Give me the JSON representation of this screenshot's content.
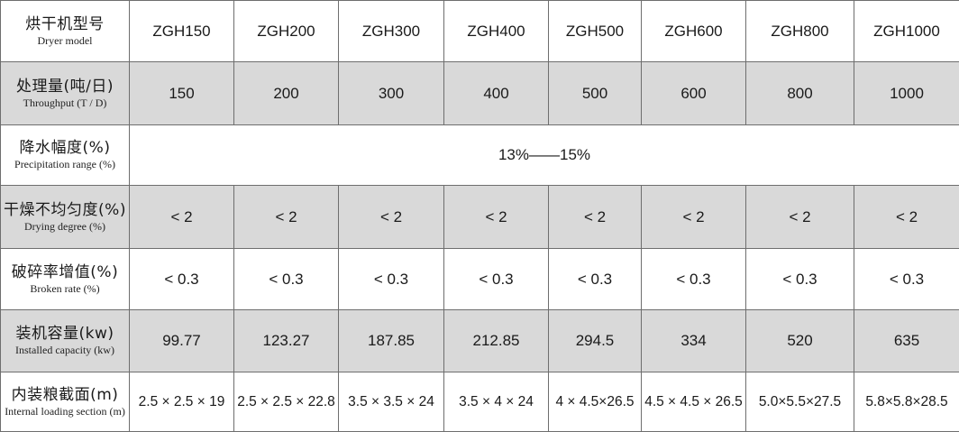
{
  "header": {
    "zh": "烘干机型号",
    "en": "Dryer model",
    "models": [
      "ZGH150",
      "ZGH200",
      "ZGH300",
      "ZGH400",
      "ZGH500",
      "ZGH600",
      "ZGH800",
      "ZGH1000"
    ]
  },
  "rows": [
    {
      "zh": "处理量(吨/日)",
      "en": "Throughput (T / D)",
      "values": [
        "150",
        "200",
        "300",
        "400",
        "500",
        "600",
        "800",
        "1000"
      ]
    },
    {
      "zh": "降水幅度(%)",
      "en": "Precipitation range (%)",
      "merged_value": "13%——15%"
    },
    {
      "zh": "干燥不均匀度(%)",
      "en": "Drying degree (%)",
      "values": [
        "< 2",
        "< 2",
        "< 2",
        "< 2",
        "< 2",
        "< 2",
        "< 2",
        "< 2"
      ]
    },
    {
      "zh": "破碎率增值(%)",
      "en": "Broken rate (%)",
      "values": [
        "< 0.3",
        "< 0.3",
        "< 0.3",
        "< 0.3",
        "< 0.3",
        "< 0.3",
        "< 0.3",
        "< 0.3"
      ]
    },
    {
      "zh": "装机容量(kw)",
      "en": "Installed capacity (kw)",
      "values": [
        "99.77",
        "123.27",
        "187.85",
        "212.85",
        "294.5",
        "334",
        "520",
        "635"
      ]
    },
    {
      "zh": "内装粮截面(m)",
      "en": "Internal loading section (m)",
      "values": [
        "2.5 × 2.5 × 19",
        "2.5 × 2.5 × 22.8",
        "3.5 × 3.5 × 24",
        "3.5 × 4 × 24",
        "4 × 4.5×26.5",
        "4.5 × 4.5 × 26.5",
        "5.0×5.5×27.5",
        "5.8×5.8×28.5"
      ]
    }
  ]
}
